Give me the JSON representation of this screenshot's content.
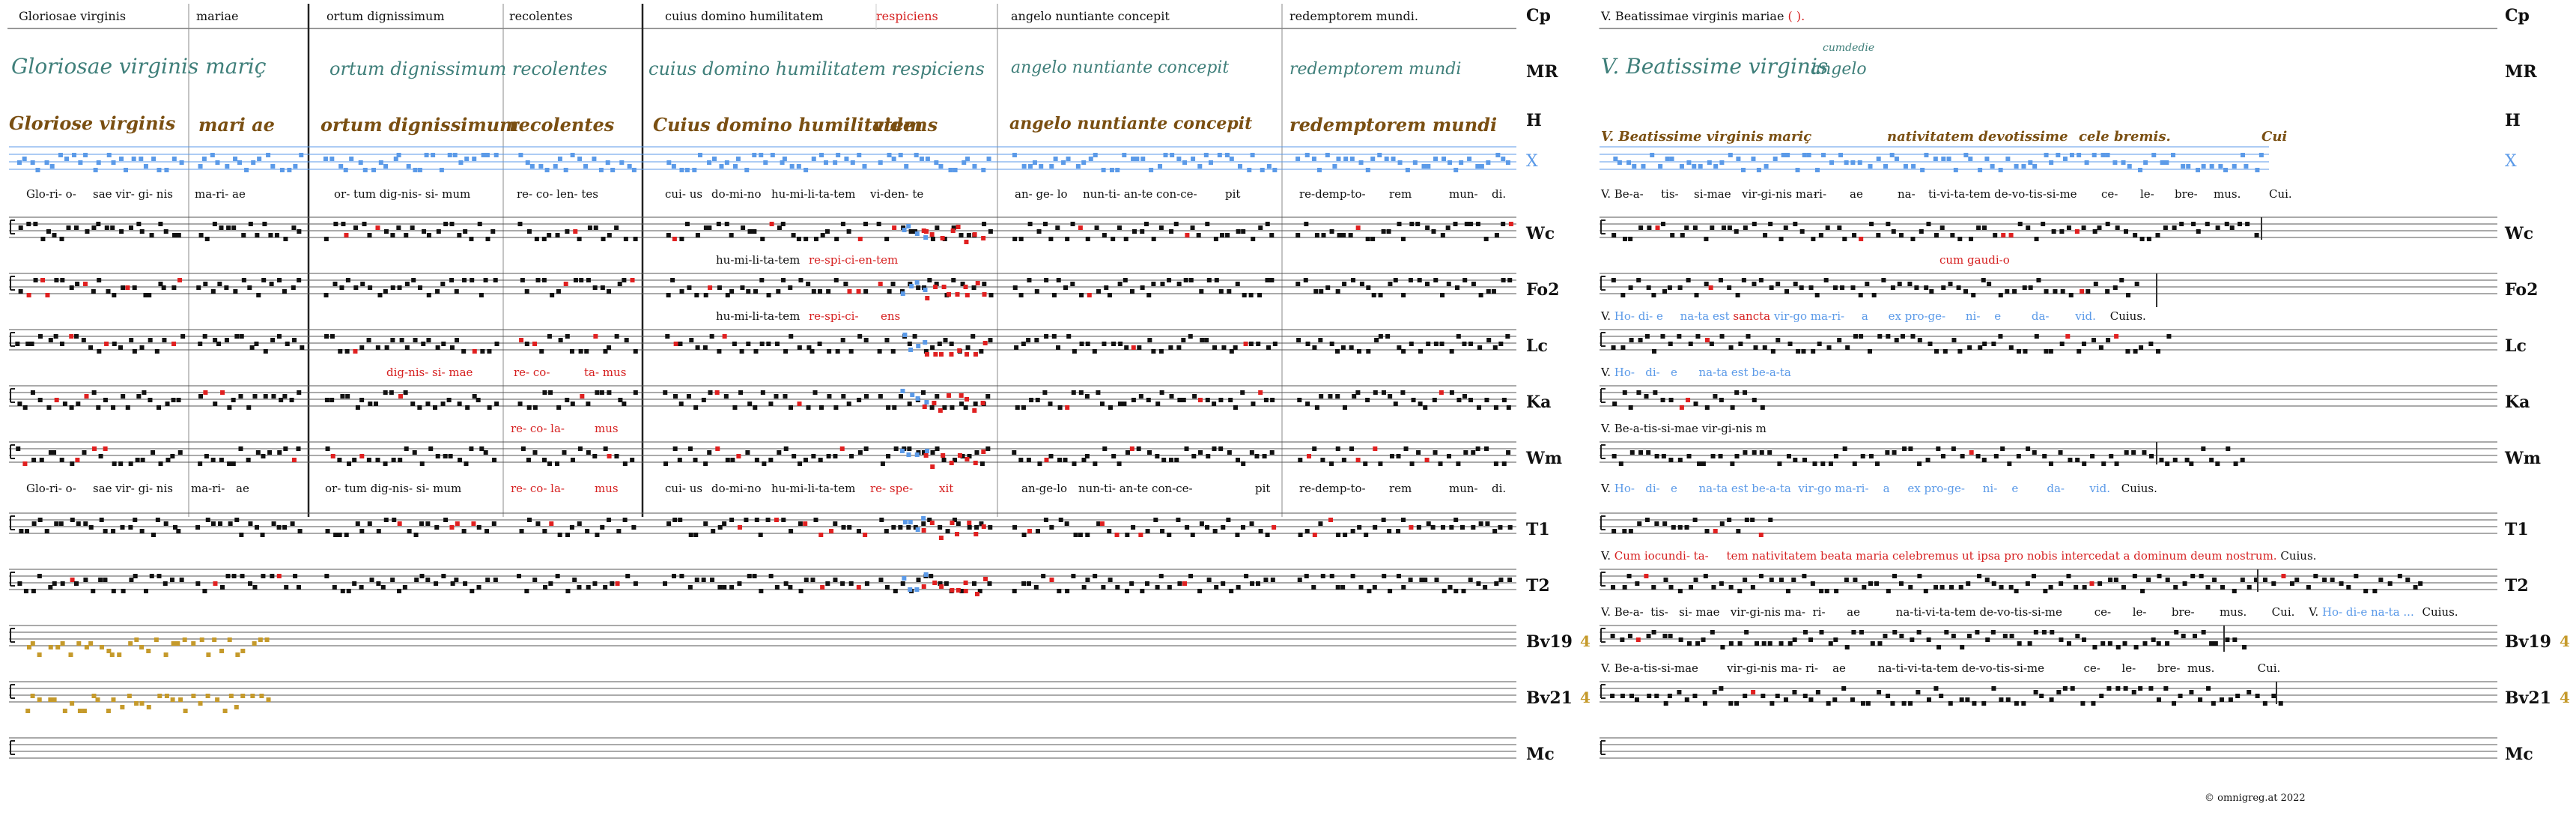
{
  "colors": {
    "black": "#111111",
    "red": "#e02020",
    "blue": "#5b9ae8",
    "gold": "#c59a2b",
    "grey": "#bbbbbb",
    "green": "#4a9a4a",
    "ms_green": "#3f7f7a",
    "ms_brown": "#7a4f12"
  },
  "left": {
    "headers": [
      {
        "text": "Gloriosae virginis",
        "red": false
      },
      {
        "text": "mariae",
        "red": false
      },
      {
        "text": "ortum dignissimum",
        "red": false
      },
      {
        "text": "recolentes",
        "red": false
      },
      {
        "text": "cuius domino humilitatem",
        "red": false
      },
      {
        "text": "respiciens",
        "red": true
      },
      {
        "text": "angelo nuntiante concepit",
        "red": false
      },
      {
        "text": "redemptorem mundi.",
        "red": false
      }
    ],
    "ms_MR": [
      "Gloriosae virginis mariç",
      "ortum dignissimum recolentes",
      "cuius domino humilitatem respiciens",
      "angelo nuntiante concepit",
      "redemptorem mundi"
    ],
    "ms_H": [
      "Gloriose virginis",
      "mari ae",
      "ortum dignissimum",
      "recolentes",
      "Cuius domino humilitatem",
      "videns",
      "angelo nuntiante concepit",
      "redemptorem mundi"
    ],
    "syll_X": [
      "Glo-ri- o-",
      "sae vir- gi- nis",
      "ma-ri- ae",
      "or- tum dig-nis- si- mum",
      "re- co- len- tes",
      "cui- us",
      "do-mi-no",
      "hu-mi-li-ta-tem",
      "vi-den- te",
      "an- ge- lo",
      "nun-ti- an-te con-ce-",
      "pit",
      "re-demp-to-",
      "rem",
      "mun-",
      "di."
    ],
    "syll_Wc": [
      "hu-mi-li-ta-tem",
      "re-spi-ci-en-tem"
    ],
    "syll_Fo2": [
      "hu-mi-li-ta-tem",
      "re-spi-ci-",
      "ens"
    ],
    "syll_Lc": [
      "dig-nis- si- mae",
      "re- co-",
      "ta- mus"
    ],
    "syll_Ka": [
      "re- co- la-",
      "mus"
    ],
    "syll_Wm": [
      "Glo-ri- o-",
      "sae vir- gi- nis",
      "ma-ri-",
      "ae",
      "or- tum dig-nis- si- mum",
      "re- co- la-",
      "mus",
      "cui- us",
      "do-mi-no",
      "hu-mi-li-ta-tem",
      "re- spe-",
      "xit",
      "an-ge-lo",
      "nun-ti- an-te con-ce-",
      "pit",
      "re-demp-to-",
      "rem",
      "mun-",
      "di."
    ]
  },
  "right": {
    "header": "V. Beatissimae virginis mariae",
    "header_paren": "( ).",
    "ms_MR": [
      "V. Beatissime virginis",
      "angelo"
    ],
    "ms_MR_gloss": "cumdedie",
    "ms_H": [
      "V. Beatissime virginis mariç",
      "nativitatem devotissime",
      "cele bremis.",
      "Cui"
    ],
    "syll_X": [
      "V. Be-a-",
      "tis-",
      "si-mae",
      "vir-gi-nis ma-",
      "ri-",
      "ae",
      "na-",
      "ti-vi-ta-tem de-vo-tis-si-me",
      "ce-",
      "le-",
      "bre-",
      "mus.",
      "Cui."
    ],
    "wc_gloss": "cum gaudi-o",
    "fo2_pre": "V.",
    "fo2_blue1": "Ho-   di-   e",
    "fo2_blue2": "na-ta est",
    "fo2_red": "sancta",
    "fo2_blue3": "vir-go ma-ri-",
    "fo2_blue4": "a",
    "fo2_blue5": "ex pro-ge-",
    "fo2_blue6": "ni-",
    "fo2_blue7": "e",
    "fo2_blue8": "da-",
    "fo2_blue9": "vid.",
    "fo2_end": "Cuius.",
    "lc_pre": "V.",
    "lc_blue": "Ho-   di-   e      na-ta est be-a-ta",
    "ka_text": "V. Be-a-tis-si-mae vir-gi-nis m",
    "wm_pre": "V.",
    "wm_blue": "Ho-   di-   e      na-ta est be-a-ta  vir-go ma-ri-    a     ex pro-ge-     ni-    e        da-       vid.",
    "wm_end": "Cuius.",
    "t1_pre": "V.",
    "t1_red": "Cum iocundi- ta-     tem nativitatem beata maria celebremus ut ipsa pro nobis intercedat a dominum deum nostrum.",
    "t1_end": "Cuius.",
    "t2_text": "V. Be-a-  tis-   si- mae   vir-gi-nis ma-  ri-      ae          na-ti-vi-ta-tem de-vo-tis-si-me         ce-      le-       bre-       mus.       Cui.",
    "t2_v": "V.",
    "t2_blue": "Ho-    di-e na-ta ...",
    "t2_end": "Cuius.",
    "bv19_text": "V. Be-a-tis-si-mae        vir-gi-nis ma- ri-    ae         na-ti-vi-ta-tem de-vo-tis-si-me           ce-      le-      bre-  mus.            Cui."
  },
  "row_labels": [
    "Cp",
    "MR",
    "H",
    "X",
    "Wc",
    "Fo2",
    "Lc",
    "Ka",
    "Wm",
    "T1",
    "T2",
    "Bv19",
    "Bv21",
    "Mc"
  ],
  "badge_bv19": "4",
  "badge_bv21": "4",
  "copyright": "© omnigreg.at 2022"
}
